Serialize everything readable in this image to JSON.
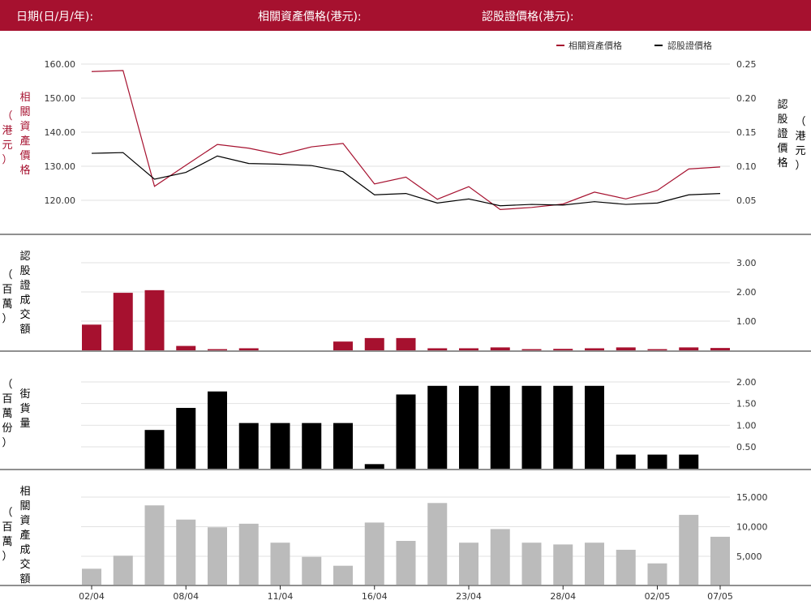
{
  "header": {
    "date_label": "日期(日/月/年):",
    "asset_label": "相關資產價格(港元):",
    "warrant_label": "認股證價格(港元):"
  },
  "colors": {
    "brand": "#a6112f",
    "asset": "#a6112f",
    "warrant": "#000000",
    "turnover": "#bbbbbb"
  },
  "panels": {
    "price": {
      "ylabel_left": "相關資產價格",
      "unit_left": "（港元）",
      "ylabel_right": "認股證價格",
      "unit_right": "（港元）"
    },
    "warrant_turnover": {
      "ylabel": "認股證成交額",
      "unit": "（百萬）"
    },
    "outstanding": {
      "ylabel": "街貨量",
      "unit": "（百萬份）"
    },
    "asset_turnover": {
      "ylabel": "相關資產成交額",
      "unit": "（百萬）"
    }
  },
  "chart_data": [
    {
      "type": "line",
      "legend_position": "top-right",
      "series": [
        {
          "name": "相關資產價格",
          "axis": "left",
          "values": [
            157.8,
            158.1,
            124.1,
            130.3,
            136.4,
            135.3,
            133.4,
            135.7,
            136.7,
            124.8,
            126.8,
            120.3,
            124.0,
            117.3,
            117.9,
            118.9,
            122.4,
            120.4,
            122.9,
            129.2,
            129.8
          ]
        },
        {
          "name": "認股證價格",
          "axis": "right",
          "values": [
            0.119,
            0.12,
            0.081,
            0.091,
            0.115,
            0.104,
            0.103,
            0.101,
            0.092,
            0.058,
            0.06,
            0.046,
            0.052,
            0.042,
            0.044,
            0.043,
            0.048,
            0.044,
            0.046,
            0.058,
            0.06
          ]
        }
      ],
      "y_left": {
        "ticks": [
          "120.00",
          "130.00",
          "140.00",
          "150.00",
          "160.00"
        ],
        "ylim": [
          114,
          162
        ]
      },
      "y_right": {
        "ticks": [
          "0.05",
          "0.10",
          "0.15",
          "0.20",
          "0.25"
        ],
        "ylim": [
          0.01,
          0.262
        ]
      },
      "grid": true
    },
    {
      "type": "bar",
      "name": "認股證成交額",
      "values": [
        0.88,
        1.97,
        2.06,
        0.15,
        0.04,
        0.07,
        0,
        0,
        0.3,
        0.42,
        0.42,
        0.07,
        0.07,
        0.1,
        0.04,
        0.05,
        0.07,
        0.1,
        0.04,
        0.1,
        0.08
      ],
      "ticks": [
        "1.00",
        "2.00",
        "3.00"
      ],
      "ylim": [
        0,
        3.15
      ],
      "grid": true
    },
    {
      "type": "bar",
      "name": "街貨量",
      "values": [
        0,
        0,
        0.89,
        1.4,
        1.78,
        1.05,
        1.05,
        1.05,
        1.05,
        0.1,
        1.71,
        1.91,
        1.91,
        1.91,
        1.91,
        1.91,
        1.91,
        0.32,
        0.32,
        0.32,
        0
      ],
      "ticks": [
        "0.50",
        "1.00",
        "1.50",
        "2.00"
      ],
      "ylim": [
        0,
        2.15
      ],
      "grid": true
    },
    {
      "type": "bar",
      "name": "相關資產成交額",
      "values": [
        2900,
        5100,
        13600,
        11200,
        9900,
        10500,
        7300,
        4900,
        3400,
        10700,
        7600,
        14000,
        7300,
        9600,
        7300,
        7000,
        7300,
        6100,
        3800,
        12000,
        8300
      ],
      "ticks": [
        "5,000",
        "10,000",
        "15,000"
      ],
      "ylim": [
        0,
        16400
      ],
      "grid": true
    }
  ],
  "x_axis": {
    "tick_labels": [
      "02/04",
      "08/04",
      "11/04",
      "16/04",
      "23/04",
      "28/04",
      "02/05",
      "07/05"
    ],
    "tick_indices": [
      0,
      3,
      6,
      9,
      12,
      15,
      18,
      20
    ]
  }
}
